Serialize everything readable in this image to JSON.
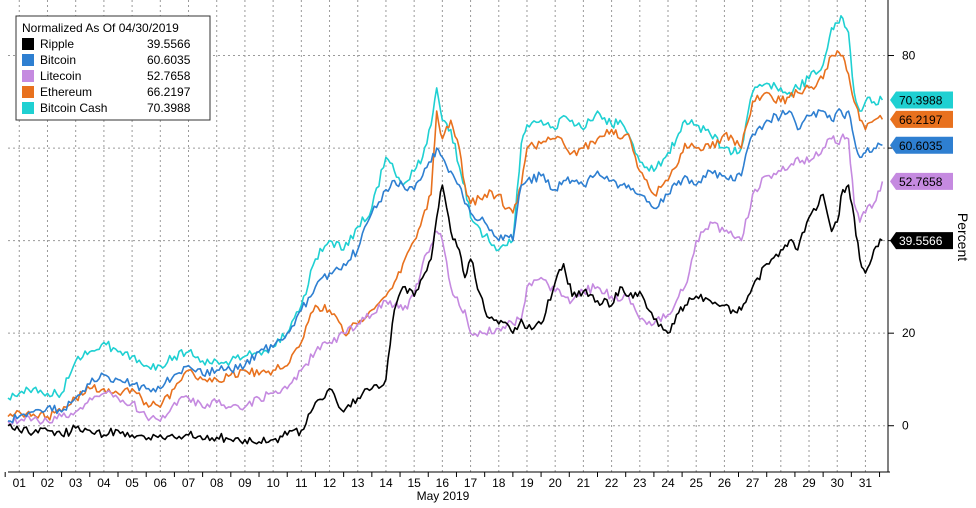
{
  "chart_data": {
    "type": "line",
    "legend_title": "Normalized As Of 04/30/2019",
    "ylabel": "Percent",
    "xlabel": "May 2019",
    "ylim": [
      -10,
      92
    ],
    "yticks": [
      0,
      20,
      40,
      60,
      80
    ],
    "xlim": [
      0.6,
      31.8
    ],
    "x_tick_labels": [
      "01",
      "02",
      "03",
      "04",
      "05",
      "06",
      "07",
      "08",
      "09",
      "10",
      "11",
      "12",
      "13",
      "14",
      "15",
      "16",
      "17",
      "18",
      "19",
      "20",
      "21",
      "22",
      "23",
      "24",
      "25",
      "26",
      "27",
      "28",
      "29",
      "30",
      "31"
    ],
    "grid": true,
    "legend_position": "top-left",
    "series": [
      {
        "name": "Ripple",
        "last_value": "39.5566",
        "color": "#000000",
        "x": [
          0.6,
          1.0,
          1.5,
          2.0,
          2.5,
          3.0,
          3.5,
          4.0,
          4.5,
          5.0,
          5.5,
          6.0,
          6.5,
          7.0,
          7.5,
          8.0,
          8.5,
          9.0,
          9.5,
          10.0,
          10.5,
          11.0,
          11.5,
          12.0,
          12.5,
          13.0,
          13.5,
          14.0,
          14.3,
          14.6,
          15.0,
          15.3,
          15.6,
          15.8,
          16.0,
          16.3,
          16.6,
          16.8,
          17.0,
          17.5,
          18.0,
          18.3,
          18.5,
          18.8,
          19.0,
          19.5,
          20.0,
          20.3,
          20.6,
          21.0,
          21.5,
          22.0,
          22.3,
          22.6,
          23.0,
          23.5,
          24.0,
          24.3,
          24.6,
          25.0,
          25.5,
          26.0,
          26.3,
          26.6,
          27.0,
          27.5,
          28.0,
          28.3,
          28.6,
          29.0,
          29.5,
          29.8,
          30.0,
          30.2,
          30.4,
          30.6,
          30.8,
          31.0,
          31.3,
          31.6
        ],
        "y": [
          0,
          -1,
          -1.5,
          -1,
          -2,
          -0.5,
          -1,
          -2,
          -1,
          -2,
          -3,
          -2,
          -2.5,
          -2,
          -3,
          -2.5,
          -3,
          -3,
          -3.5,
          -3,
          -2,
          -1,
          5,
          8,
          3,
          6,
          8,
          10,
          25,
          30,
          28,
          32,
          36,
          45,
          52,
          42,
          38,
          32,
          36,
          25,
          22,
          22,
          20,
          23,
          21,
          22,
          31,
          35,
          28,
          29,
          27,
          26,
          30,
          28,
          29,
          23,
          20,
          24,
          26,
          28,
          27,
          26,
          25,
          25,
          30,
          35,
          38,
          40,
          38,
          45,
          50,
          42,
          44,
          51,
          52,
          45,
          36,
          33,
          38,
          40
        ]
      },
      {
        "name": "Bitcoin",
        "last_value": "60.6035",
        "color": "#2e7fd1",
        "x": [
          0.6,
          1.0,
          1.5,
          2.0,
          2.5,
          3.0,
          3.5,
          4.0,
          4.5,
          5.0,
          5.5,
          6.0,
          6.5,
          7.0,
          7.5,
          8.0,
          8.5,
          9.0,
          9.5,
          10.0,
          10.5,
          11.0,
          11.5,
          12.0,
          12.5,
          13.0,
          13.5,
          14.0,
          14.3,
          14.6,
          15.0,
          15.3,
          15.6,
          15.8,
          16.0,
          16.3,
          16.6,
          16.8,
          17.0,
          17.5,
          18.0,
          18.3,
          18.5,
          18.8,
          19.0,
          19.5,
          20.0,
          20.3,
          20.6,
          21.0,
          21.5,
          22.0,
          22.3,
          22.6,
          23.0,
          23.5,
          24.0,
          24.3,
          24.6,
          25.0,
          25.5,
          26.0,
          26.3,
          26.6,
          27.0,
          27.5,
          28.0,
          28.3,
          28.6,
          29.0,
          29.5,
          29.8,
          30.0,
          30.2,
          30.4,
          30.6,
          30.8,
          31.0,
          31.3,
          31.6
        ],
        "y": [
          1,
          2,
          3,
          4,
          3,
          6,
          9,
          11,
          10,
          9,
          8,
          8,
          11,
          13,
          11,
          12,
          12,
          13,
          16,
          17,
          20,
          25,
          30,
          33,
          35,
          38,
          46,
          51,
          53,
          52,
          51,
          54,
          57,
          60,
          58,
          55,
          52,
          48,
          46,
          44,
          40,
          41,
          40,
          52,
          53,
          54,
          51,
          53,
          53,
          52,
          55,
          53,
          52,
          52,
          50,
          47,
          50,
          52,
          54,
          52,
          55,
          54,
          53,
          54,
          63,
          66,
          67,
          68,
          64,
          67,
          68,
          66,
          68,
          67,
          68,
          62,
          58,
          59,
          60,
          60.6
        ]
      },
      {
        "name": "Litecoin",
        "last_value": "52.7658",
        "color": "#c58ae0",
        "x": [
          0.6,
          1.0,
          1.5,
          2.0,
          2.5,
          3.0,
          3.5,
          4.0,
          4.5,
          5.0,
          5.5,
          6.0,
          6.5,
          7.0,
          7.5,
          8.0,
          8.5,
          9.0,
          9.5,
          10.0,
          10.5,
          11.0,
          11.5,
          12.0,
          12.5,
          13.0,
          13.5,
          14.0,
          14.3,
          14.6,
          15.0,
          15.3,
          15.6,
          15.8,
          16.0,
          16.3,
          16.6,
          16.8,
          17.0,
          17.5,
          18.0,
          18.3,
          18.5,
          18.8,
          19.0,
          19.5,
          20.0,
          20.3,
          20.6,
          21.0,
          21.5,
          22.0,
          22.3,
          22.6,
          23.0,
          23.5,
          24.0,
          24.3,
          24.6,
          25.0,
          25.5,
          26.0,
          26.3,
          26.6,
          27.0,
          27.5,
          28.0,
          28.3,
          28.6,
          29.0,
          29.5,
          29.8,
          30.0,
          30.2,
          30.4,
          30.6,
          30.8,
          31.0,
          31.3,
          31.6
        ],
        "y": [
          1,
          1,
          1.5,
          1,
          2,
          3,
          6,
          7,
          6,
          5,
          2,
          1,
          5,
          6,
          4,
          5,
          4,
          4,
          6,
          7,
          8,
          12,
          16,
          18,
          20,
          22,
          24,
          27,
          26,
          25,
          28,
          35,
          39,
          42,
          40,
          30,
          26,
          25,
          20,
          20,
          21,
          22,
          22,
          23,
          30,
          32,
          29,
          28,
          27,
          29,
          30,
          28,
          27,
          28,
          23,
          22,
          24,
          27,
          30,
          40,
          44,
          42,
          41,
          40,
          50,
          54,
          55,
          56,
          58,
          57,
          60,
          62,
          61,
          63,
          62,
          48,
          44,
          46,
          48,
          52.8
        ]
      },
      {
        "name": "Ethereum",
        "last_value": "66.2197",
        "color": "#e8711e",
        "x": [
          0.6,
          1.0,
          1.5,
          2.0,
          2.5,
          3.0,
          3.5,
          4.0,
          4.5,
          5.0,
          5.5,
          6.0,
          6.5,
          7.0,
          7.5,
          8.0,
          8.5,
          9.0,
          9.5,
          10.0,
          10.5,
          11.0,
          11.5,
          12.0,
          12.5,
          13.0,
          13.5,
          14.0,
          14.3,
          14.6,
          15.0,
          15.3,
          15.6,
          15.8,
          16.0,
          16.3,
          16.6,
          16.8,
          17.0,
          17.5,
          18.0,
          18.3,
          18.5,
          18.8,
          19.0,
          19.5,
          20.0,
          20.3,
          20.6,
          21.0,
          21.5,
          22.0,
          22.3,
          22.6,
          23.0,
          23.5,
          24.0,
          24.3,
          24.6,
          25.0,
          25.5,
          26.0,
          26.3,
          26.6,
          27.0,
          27.5,
          28.0,
          28.3,
          28.6,
          29.0,
          29.5,
          29.8,
          30.0,
          30.2,
          30.4,
          30.6,
          30.8,
          31.0,
          31.3,
          31.6
        ],
        "y": [
          2,
          3,
          2.5,
          2,
          3,
          6,
          8,
          8,
          7,
          8,
          5,
          4,
          8,
          12,
          10,
          10,
          11,
          12,
          11,
          12,
          13,
          18,
          26,
          25,
          20,
          22,
          25,
          28,
          31,
          35,
          40,
          45,
          50,
          68,
          62,
          66,
          60,
          52,
          48,
          50,
          50,
          47,
          46,
          52,
          60,
          61,
          62,
          61,
          59,
          60,
          62,
          64,
          62,
          63,
          55,
          50,
          53,
          56,
          61,
          60,
          60,
          63,
          62,
          60,
          70,
          72,
          70,
          71,
          72,
          73,
          75,
          80,
          81,
          80,
          76,
          70,
          66,
          64,
          66,
          66.2
        ]
      },
      {
        "name": "Bitcoin Cash",
        "last_value": "70.3988",
        "color": "#1fd0d2",
        "x": [
          0.6,
          1.0,
          1.5,
          2.0,
          2.5,
          3.0,
          3.5,
          4.0,
          4.5,
          5.0,
          5.5,
          6.0,
          6.5,
          7.0,
          7.5,
          8.0,
          8.5,
          9.0,
          9.5,
          10.0,
          10.5,
          11.0,
          11.5,
          12.0,
          12.5,
          13.0,
          13.5,
          14.0,
          14.3,
          14.6,
          15.0,
          15.3,
          15.6,
          15.8,
          16.0,
          16.3,
          16.6,
          16.8,
          17.0,
          17.5,
          18.0,
          18.3,
          18.5,
          18.8,
          19.0,
          19.5,
          20.0,
          20.3,
          20.6,
          21.0,
          21.5,
          22.0,
          22.3,
          22.6,
          23.0,
          23.5,
          24.0,
          24.3,
          24.6,
          25.0,
          25.5,
          26.0,
          26.3,
          26.6,
          27.0,
          27.5,
          28.0,
          28.3,
          28.6,
          29.0,
          29.5,
          29.8,
          30.0,
          30.2,
          30.4,
          30.6,
          30.8,
          31.0,
          31.3,
          31.6
        ],
        "y": [
          6,
          7,
          8,
          7,
          7,
          14,
          16,
          18,
          16,
          15,
          13,
          13,
          15,
          16,
          14,
          14,
          14,
          15,
          16,
          17,
          20,
          26,
          36,
          40,
          38,
          43,
          47,
          58,
          55,
          52,
          55,
          58,
          65,
          73,
          66,
          64,
          56,
          52,
          45,
          41,
          38,
          39,
          40,
          61,
          65,
          66,
          64,
          67,
          66,
          64,
          68,
          65,
          66,
          63,
          57,
          55,
          59,
          62,
          66,
          65,
          63,
          60,
          59,
          60,
          72,
          74,
          73,
          72,
          73,
          75,
          78,
          86,
          87,
          88,
          85,
          72,
          68,
          70,
          70,
          70.4
        ]
      }
    ]
  }
}
